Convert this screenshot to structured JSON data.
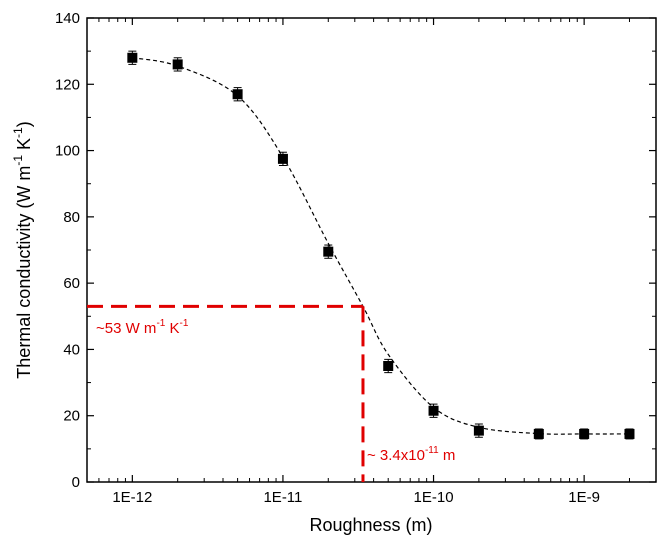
{
  "chart_data": {
    "type": "scatter",
    "xlabel": "Roughness (m)",
    "ylabel_main": "Thermal conductivity (W m",
    "ylabel_sup1": "-1",
    "ylabel_mid": " K",
    "ylabel_sup2": "-1",
    "ylabel_end": ")",
    "xscale": "log",
    "xlim": [
      5e-13,
      3e-09
    ],
    "ylim": [
      0,
      140
    ],
    "x_ticks": [
      {
        "value": 1e-12,
        "label": "1E-12"
      },
      {
        "value": 1e-11,
        "label": "1E-11"
      },
      {
        "value": 1e-10,
        "label": "1E-10"
      },
      {
        "value": 1e-09,
        "label": "1E-9"
      }
    ],
    "y_ticks": [
      0,
      20,
      40,
      60,
      80,
      100,
      120,
      140
    ],
    "grid": false,
    "series": [
      {
        "marker": "square",
        "color": "#000000",
        "x": [
          1e-12,
          2e-12,
          5e-12,
          1e-11,
          2e-11,
          5e-11,
          1e-10,
          2e-10,
          5e-10,
          1e-09,
          2e-09
        ],
        "y": [
          128,
          126,
          117,
          97.5,
          69.5,
          35,
          21.5,
          15.5,
          14.5,
          14.5,
          14.5
        ],
        "error": [
          2,
          2,
          2,
          2,
          2,
          2,
          2,
          2,
          1.5,
          1.5,
          1.5
        ]
      }
    ],
    "fit_curve": {
      "style": "dashed",
      "color": "#000000",
      "x": [
        1e-12,
        2e-12,
        5e-12,
        1e-11,
        2e-11,
        3.4e-11,
        5e-11,
        1e-10,
        2e-10,
        5e-10,
        1e-09,
        2e-09
      ],
      "y": [
        128,
        125.5,
        116.5,
        98,
        72,
        53,
        38.5,
        22.5,
        16.5,
        14.6,
        14.5,
        14.5
      ]
    },
    "reference_lines": {
      "color": "#e00000",
      "x_value": 3.4e-11,
      "y_value": 53
    },
    "annotations": {
      "y_label_main": "~53 W m",
      "y_label_sup1": "-1",
      "y_label_mid": " K",
      "y_label_sup2": "-1",
      "x_label_main": "~ 3.4x10",
      "x_label_sup": "-11",
      "x_label_end": " m"
    }
  }
}
